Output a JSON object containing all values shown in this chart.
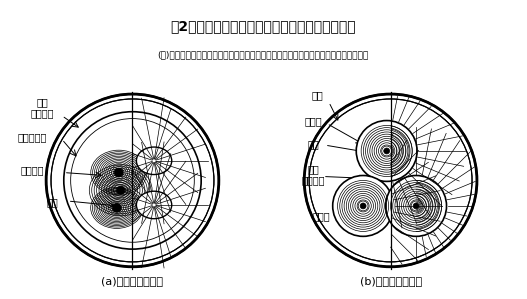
{
  "title": "第2図　ベルトケーブルと遮へいケーブルの電界",
  "caption_a": "(a)ベルトケーブル",
  "caption_b": "(b)遮へいケーブル",
  "note": "(注)左半分は構造、右半分は力線分布（ベルトケーブルの力線分布は各瞬時変化する）",
  "label_kainyu_jute": "介在\nジュート",
  "label_belt_zetsu": "ベルト絶縁",
  "label_core_zetsu": "コア絶縁",
  "label_doutai_l": "導体",
  "label_namari": "銁被",
  "label_zetsuen_kami": "絶縁紙",
  "label_doutai_r": "導体",
  "label_kainyu_jute_r": "介在\nジュート",
  "label_shielding": "遮へい",
  "bg_color": "#ffffff",
  "line_color": "#000000"
}
